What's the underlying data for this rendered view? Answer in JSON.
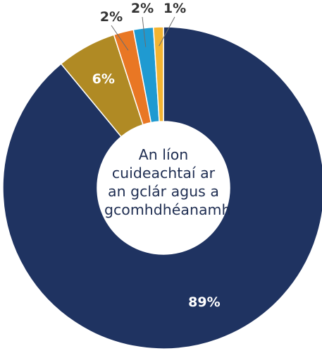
{
  "chart_data": {
    "type": "pie",
    "title": "",
    "center_label": [
      "An líon",
      "cuideachtaí ar",
      "an gclár agus a",
      "gcomhdhéanamh"
    ],
    "slices": [
      {
        "label": "89%",
        "value": 89,
        "color": "#1f3361"
      },
      {
        "label": "6%",
        "value": 6,
        "color": "#b08a24"
      },
      {
        "label": "2%",
        "value": 2,
        "color": "#e97724"
      },
      {
        "label": "2%",
        "value": 2,
        "color": "#1f9ad1"
      },
      {
        "label": "1%",
        "value": 1,
        "color": "#f3b431"
      }
    ]
  }
}
